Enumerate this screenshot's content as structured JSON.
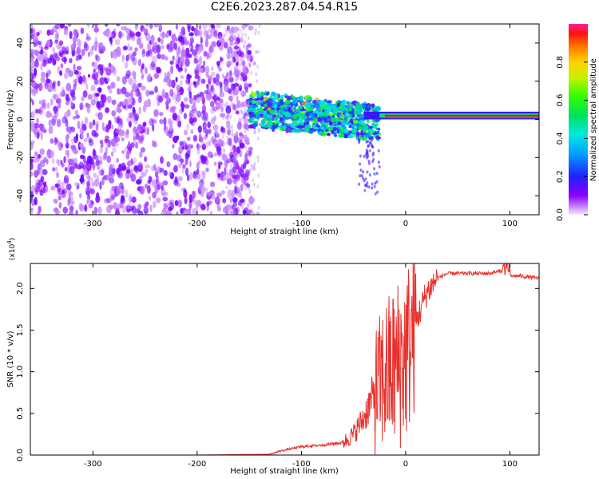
{
  "title": "C2E6.2023.287.04.54.R15",
  "colors": {
    "snr_line": "#e8302c",
    "axis": "#000000",
    "spectrogram_base": "#7a1fe0",
    "background": "#ffffff"
  },
  "chart_data": [
    {
      "type": "heatmap",
      "title": "",
      "xlabel": "Height of straight line (km)",
      "ylabel": "Frequency (Hz)",
      "xlim": [
        -360,
        128
      ],
      "ylim": [
        -50,
        50
      ],
      "xticks": [
        -300,
        -200,
        -100,
        0,
        100
      ],
      "yticks": [
        -40,
        -20,
        0,
        20,
        40
      ],
      "colorbar": {
        "label": "Normalized spectral amplitude",
        "range": [
          0.0,
          1.0
        ],
        "ticks": [
          "0.0",
          "0.2",
          "0.4",
          "0.6",
          "0.8"
        ],
        "colormap": "rainbow (purple → red)"
      },
      "features": [
        {
          "description_x_range_km": [
            -360,
            -150
          ],
          "frequency_range_hz": [
            -50,
            50
          ],
          "amplitude": 0.1
        },
        {
          "description_x_range_km": [
            -150,
            -30
          ],
          "frequency_range_hz": [
            -15,
            12
          ],
          "amplitude": 0.45
        },
        {
          "description_x_range_km": [
            -30,
            128
          ],
          "frequency_range_hz": [
            0,
            4
          ],
          "amplitude": 1.0
        }
      ]
    },
    {
      "type": "line",
      "title": "",
      "xlabel": "Height of straight line (km)",
      "ylabel": "SNR (10 * v/v)",
      "y_multiplier": "(x10",
      "y_multiplier_exp": "4",
      "y_multiplier_close": ")",
      "xlim": [
        -360,
        128
      ],
      "ylim": [
        0.0,
        2.3
      ],
      "xticks": [
        -300,
        -200,
        -100,
        0,
        100
      ],
      "yticks": [
        "0.0",
        "0.5",
        "1.0",
        "1.5",
        "2.0"
      ],
      "series": [
        {
          "x": [
            -360,
            -300,
            -200,
            -130,
            -120,
            -100,
            -80,
            -60,
            -50,
            -40,
            -30,
            -20,
            -10,
            0,
            10,
            20,
            30,
            40,
            60,
            80,
            95,
            100,
            110,
            128
          ],
          "y": [
            0.0,
            0.0,
            0.0,
            0.01,
            0.05,
            0.1,
            0.12,
            0.15,
            0.25,
            0.45,
            0.75,
            0.95,
            1.05,
            1.2,
            1.6,
            1.95,
            2.12,
            2.18,
            2.18,
            2.18,
            2.22,
            2.15,
            2.15,
            2.12
          ]
        }
      ]
    }
  ]
}
